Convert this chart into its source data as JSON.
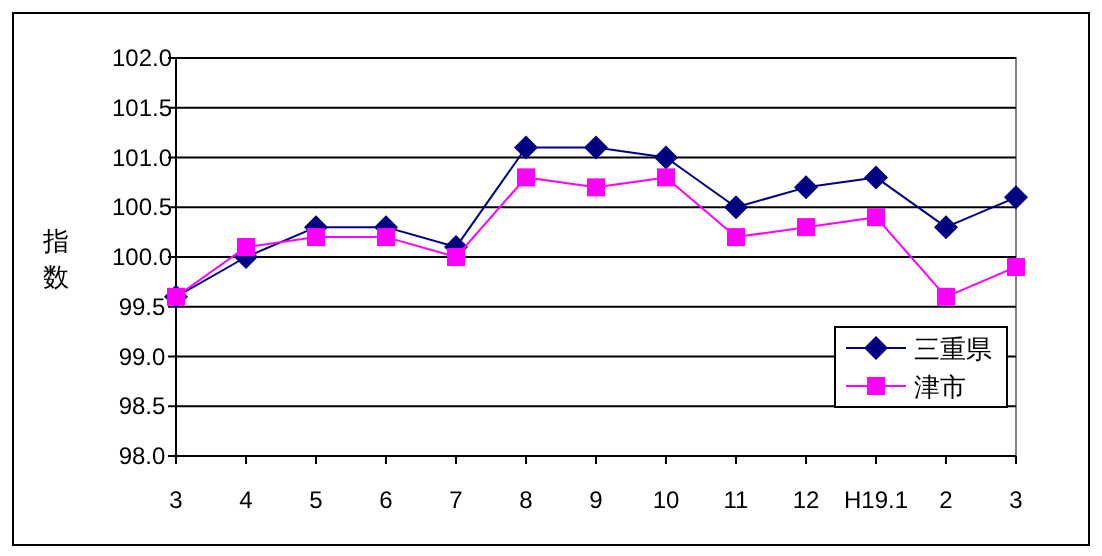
{
  "chart_data": {
    "type": "line",
    "ylabel": "指数",
    "categories": [
      "3",
      "4",
      "5",
      "6",
      "7",
      "8",
      "9",
      "10",
      "11",
      "12",
      "H19.1",
      "2",
      "3"
    ],
    "series": [
      {
        "name": "三重県",
        "color": "#000080",
        "marker": "diamond",
        "values": [
          99.6,
          100.0,
          100.3,
          100.3,
          100.1,
          101.1,
          101.1,
          101.0,
          100.5,
          100.7,
          100.8,
          100.3,
          100.6
        ]
      },
      {
        "name": "津市",
        "color": "#ff00ff",
        "marker": "square",
        "values": [
          99.6,
          100.1,
          100.2,
          100.2,
          100.0,
          100.8,
          100.7,
          100.8,
          100.2,
          100.3,
          100.4,
          99.6,
          99.9
        ]
      }
    ],
    "ylim": [
      98.0,
      102.0
    ],
    "yticks": [
      {
        "value": 98.0,
        "label": "98.0"
      },
      {
        "value": 98.5,
        "label": "98.5"
      },
      {
        "value": 99.0,
        "label": "99.0"
      },
      {
        "value": 99.5,
        "label": "99.5"
      },
      {
        "value": 100.0,
        "label": "100.0"
      },
      {
        "value": 100.5,
        "label": "100.5"
      },
      {
        "value": 101.0,
        "label": "101.0"
      },
      {
        "value": 101.5,
        "label": "101.5"
      },
      {
        "value": 102.0,
        "label": "102.0"
      }
    ],
    "grid": "y",
    "legend": "bottom right"
  }
}
